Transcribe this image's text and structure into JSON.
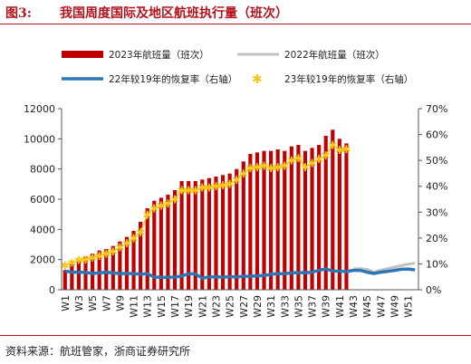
{
  "header": {
    "figure_label": "图3:",
    "title": "我国周度国际及地区航班执行量（班次）"
  },
  "source": "资料来源：航班管家，浙商证券研究所",
  "colors": {
    "bar_2023": "#c00000",
    "line_2022": "#bfbfbf",
    "line_22vs19": "#2e75b6",
    "marker_23vs19": "#f5c518",
    "accent": "#b5121b"
  },
  "chart_data": {
    "type": "bar",
    "categories": [
      "W1",
      "W2",
      "W3",
      "W4",
      "W5",
      "W6",
      "W7",
      "W8",
      "W9",
      "W10",
      "W11",
      "W12",
      "W13",
      "W14",
      "W15",
      "W16",
      "W17",
      "W18",
      "W19",
      "W20",
      "W21",
      "W22",
      "W23",
      "W24",
      "W25",
      "W26",
      "W27",
      "W28",
      "W29",
      "W30",
      "W31",
      "W32",
      "W33",
      "W34",
      "W35",
      "W36",
      "W37",
      "W38",
      "W39",
      "W40",
      "W41",
      "W42",
      "W43",
      "W44",
      "W45",
      "W46",
      "W47",
      "W48",
      "W49",
      "W50",
      "W51",
      "W52"
    ],
    "x_tick_labels": [
      "W1",
      "W3",
      "W5",
      "W7",
      "W9",
      "W11",
      "W13",
      "W15",
      "W17",
      "W19",
      "W21",
      "W23",
      "W25",
      "W27",
      "W29",
      "W31",
      "W33",
      "W35",
      "W37",
      "W39",
      "W41",
      "W43",
      "W45",
      "W47",
      "W49",
      "W51"
    ],
    "series": [
      {
        "name": "2023年航班量（班次）",
        "type": "bar",
        "axis": "left",
        "values": [
          1300,
          1800,
          2000,
          2200,
          2400,
          2600,
          2700,
          2900,
          3200,
          3500,
          3900,
          4500,
          5400,
          5900,
          6100,
          6300,
          6600,
          7200,
          7200,
          7200,
          7300,
          7400,
          7500,
          7600,
          7700,
          8000,
          8500,
          9000,
          9100,
          9200,
          9200,
          9300,
          9200,
          9500,
          9600,
          9200,
          9400,
          9600,
          10200,
          10600,
          10000,
          9700,
          null,
          null,
          null,
          null,
          null,
          null,
          null,
          null,
          null,
          null
        ]
      },
      {
        "name": "2022年航班量（班次）",
        "type": "line",
        "axis": "left",
        "values": [
          null,
          null,
          null,
          null,
          null,
          null,
          null,
          null,
          null,
          null,
          null,
          null,
          null,
          null,
          null,
          null,
          null,
          null,
          null,
          null,
          null,
          null,
          null,
          null,
          null,
          null,
          null,
          null,
          null,
          null,
          null,
          null,
          null,
          null,
          null,
          null,
          null,
          null,
          null,
          null,
          null,
          null,
          1400,
          1400,
          1350,
          1150,
          1300,
          1400,
          1500,
          1600,
          1700,
          1750
        ]
      },
      {
        "name": "22年较19年的恢复率（右轴）",
        "type": "line",
        "axis": "right",
        "values": [
          0.072,
          0.068,
          0.068,
          0.067,
          0.063,
          0.065,
          0.068,
          0.065,
          0.062,
          0.063,
          0.062,
          0.06,
          0.062,
          0.049,
          0.048,
          0.048,
          0.049,
          0.053,
          0.062,
          0.061,
          0.045,
          0.049,
          0.05,
          0.049,
          0.05,
          0.05,
          0.052,
          0.052,
          0.054,
          0.055,
          0.06,
          0.062,
          0.062,
          0.065,
          0.066,
          0.066,
          0.068,
          0.075,
          0.081,
          0.072,
          0.072,
          0.07,
          0.075,
          0.075,
          0.068,
          0.063,
          0.068,
          0.071,
          0.075,
          0.079,
          0.08,
          0.077
        ]
      },
      {
        "name": "23年较19年的恢复率（右轴）",
        "type": "scatter",
        "axis": "right",
        "values": [
          0.095,
          0.105,
          0.115,
          0.118,
          0.125,
          0.132,
          0.14,
          0.148,
          0.165,
          0.18,
          0.2,
          0.222,
          0.29,
          0.315,
          0.325,
          0.335,
          0.35,
          0.385,
          0.385,
          0.385,
          0.395,
          0.395,
          0.4,
          0.405,
          0.41,
          0.425,
          0.45,
          0.47,
          0.475,
          0.48,
          0.47,
          0.475,
          0.48,
          0.5,
          0.51,
          0.475,
          0.49,
          0.505,
          0.52,
          0.56,
          0.54,
          0.545,
          null,
          null,
          null,
          null,
          null,
          null,
          null,
          null,
          null,
          null
        ]
      }
    ],
    "left_axis": {
      "ylim": [
        0,
        12000
      ],
      "ticks": [
        "0",
        "2000",
        "4000",
        "6000",
        "8000",
        "10000",
        "12000"
      ]
    },
    "right_axis": {
      "ylim": [
        0,
        0.7
      ],
      "ticks": [
        "0%",
        "10%",
        "20%",
        "30%",
        "40%",
        "50%",
        "60%",
        "70%"
      ]
    },
    "legend": {
      "placement": "top",
      "items": [
        {
          "label": "2023年航班量（班次）",
          "kind": "bar"
        },
        {
          "label": "2022年航班量（班次）",
          "kind": "line-gray"
        },
        {
          "label": "22年较19年的恢复率（右轴）",
          "kind": "line-blue"
        },
        {
          "label": "23年较19年的恢复率（右轴）",
          "kind": "marker"
        }
      ]
    },
    "grid": false
  }
}
